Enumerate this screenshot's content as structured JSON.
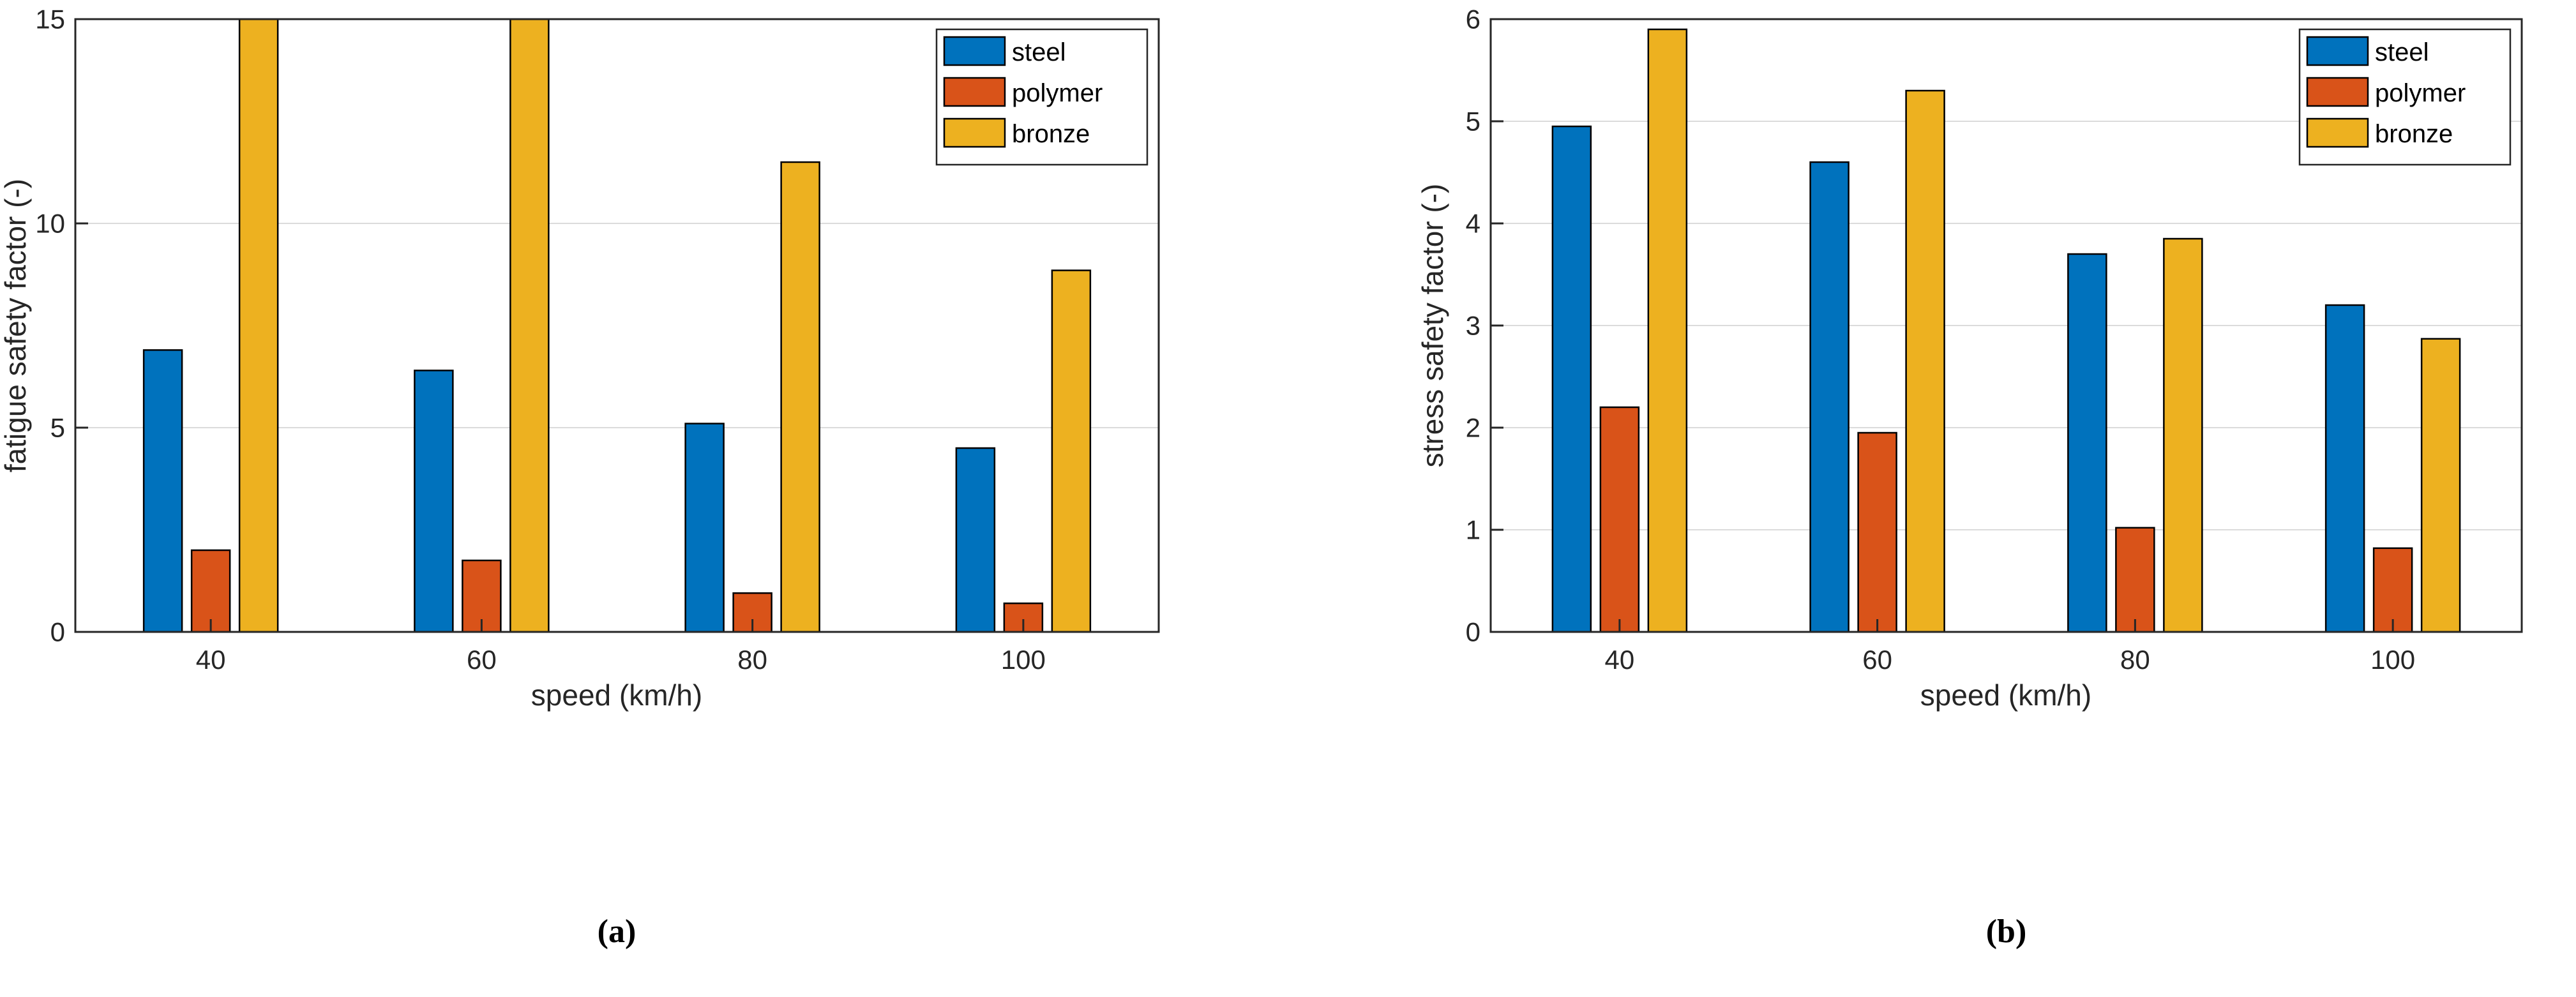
{
  "figure": {
    "captions": {
      "a": "(a)",
      "b": "(b)"
    }
  },
  "colors": {
    "steel": "#0072BD",
    "polymer": "#D95319",
    "bronze": "#EDB120",
    "bar_edge": "#000000",
    "axis": "#262626",
    "grid": "#DBDBDB",
    "background": "#FFFFFF"
  },
  "chart_data": [
    {
      "type": "bar",
      "title": "",
      "xlabel": "speed (km/h)",
      "ylabel": "fatigue safety factor (-)",
      "categories": [
        "40",
        "60",
        "80",
        "100"
      ],
      "series": [
        {
          "name": "steel",
          "color": "#0072BD",
          "values": [
            6.9,
            6.4,
            5.1,
            4.5
          ]
        },
        {
          "name": "polymer",
          "color": "#D95319",
          "values": [
            2.0,
            1.75,
            0.95,
            0.7
          ]
        },
        {
          "name": "bronze",
          "color": "#EDB120",
          "values": [
            15,
            15,
            11.5,
            8.85
          ]
        }
      ],
      "ylim": [
        0,
        15
      ],
      "yticks": [
        0,
        5,
        10,
        15
      ],
      "grid": true,
      "legend_position": "top-right",
      "note": "bronze bars at speeds 40 and 60 are clipped at the axis maximum of 15"
    },
    {
      "type": "bar",
      "title": "",
      "xlabel": "speed (km/h)",
      "ylabel": "stress safety factor (-)",
      "categories": [
        "40",
        "60",
        "80",
        "100"
      ],
      "series": [
        {
          "name": "steel",
          "color": "#0072BD",
          "values": [
            4.95,
            4.6,
            3.7,
            3.2
          ]
        },
        {
          "name": "polymer",
          "color": "#D95319",
          "values": [
            2.2,
            1.95,
            1.02,
            0.82
          ]
        },
        {
          "name": "bronze",
          "color": "#EDB120",
          "values": [
            5.9,
            5.3,
            3.85,
            2.87
          ]
        }
      ],
      "ylim": [
        0,
        6
      ],
      "yticks": [
        0,
        1,
        2,
        3,
        4,
        5,
        6
      ],
      "grid": true,
      "legend_position": "top-right"
    }
  ]
}
